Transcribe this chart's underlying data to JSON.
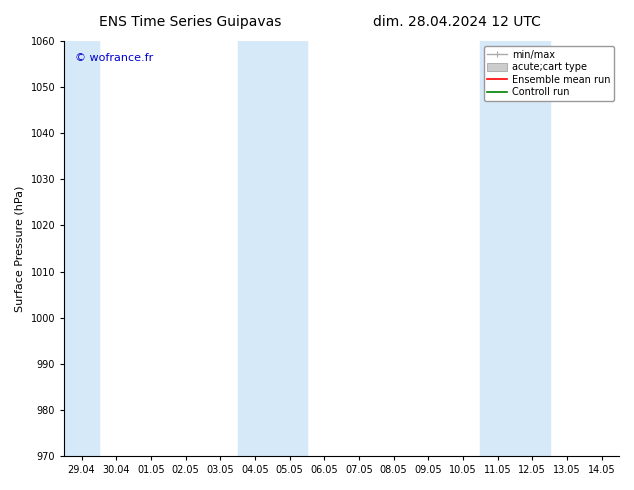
{
  "title_left": "ENS Time Series Guipavas",
  "title_right": "dim. 28.04.2024 12 UTC",
  "ylabel": "Surface Pressure (hPa)",
  "ylim": [
    970,
    1060
  ],
  "yticks": [
    970,
    980,
    990,
    1000,
    1010,
    1020,
    1030,
    1040,
    1050,
    1060
  ],
  "x_labels": [
    "29.04",
    "30.04",
    "01.05",
    "02.05",
    "03.05",
    "04.05",
    "05.05",
    "06.05",
    "07.05",
    "08.05",
    "09.05",
    "10.05",
    "11.05",
    "12.05",
    "13.05",
    "14.05"
  ],
  "x_values": [
    0,
    1,
    2,
    3,
    4,
    5,
    6,
    7,
    8,
    9,
    10,
    11,
    12,
    13,
    14,
    15
  ],
  "shaded_bands": [
    {
      "xmin": -0.5,
      "xmax": 0.5
    },
    {
      "xmin": 4.5,
      "xmax": 6.5
    },
    {
      "xmin": 11.5,
      "xmax": 13.5
    }
  ],
  "shade_color": "#d6e9f8",
  "watermark": "© wofrance.fr",
  "watermark_color": "#0000cc",
  "bg_color": "#ffffff",
  "spine_color": "#000000",
  "legend_items": [
    {
      "label": "min/max",
      "color": "#aaaaaa",
      "lw": 1,
      "style": "minmax"
    },
    {
      "label": "acute;cart type",
      "color": "#cccccc",
      "lw": 5,
      "style": "box"
    },
    {
      "label": "Ensemble mean run",
      "color": "#ff0000",
      "lw": 1.2,
      "style": "line"
    },
    {
      "label": "Controll run",
      "color": "#008000",
      "lw": 1.2,
      "style": "line"
    }
  ],
  "title_fontsize": 10,
  "tick_fontsize": 7,
  "ylabel_fontsize": 8,
  "watermark_fontsize": 8
}
